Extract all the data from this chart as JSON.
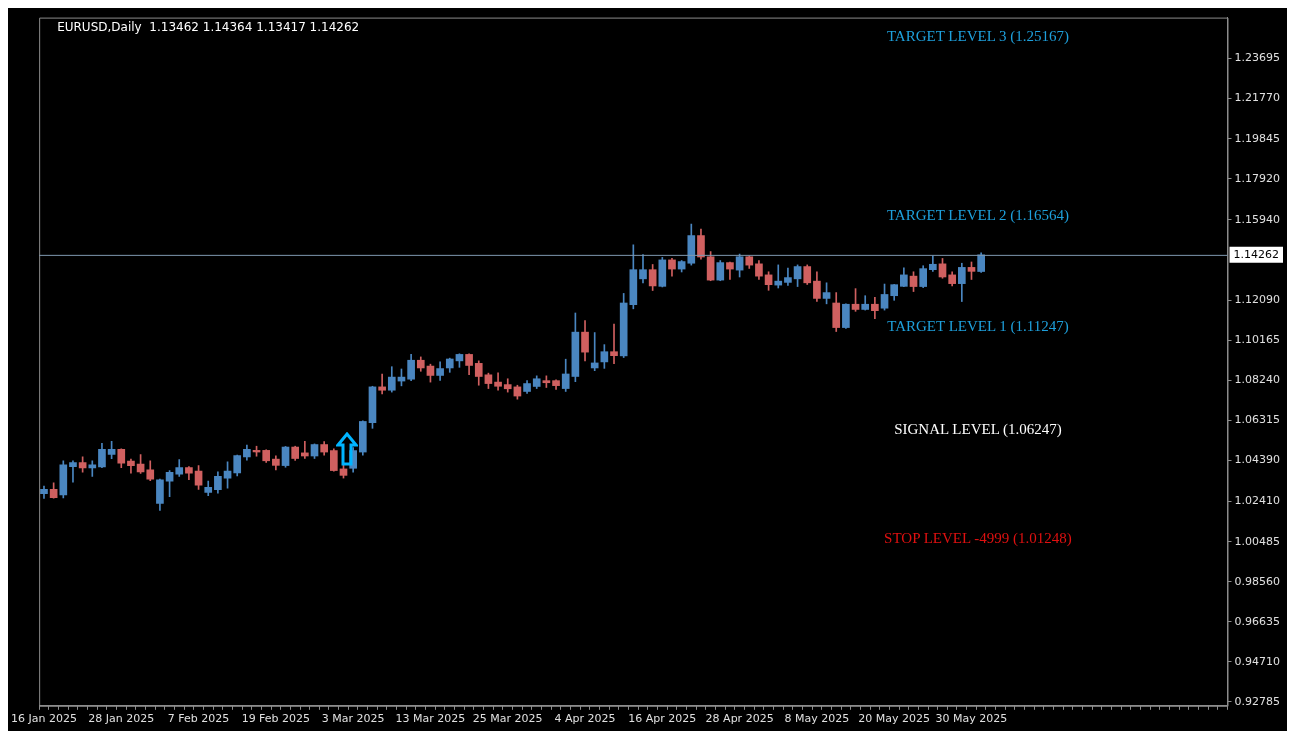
{
  "chart_data": {
    "type": "candlestick",
    "title": "EURUSD,Daily  1.13462 1.14364 1.13417 1.14262",
    "categories": [
      "16 Jan 2025",
      null,
      null,
      null,
      null,
      null,
      null,
      null,
      "28 Jan 2025",
      null,
      null,
      null,
      null,
      null,
      null,
      null,
      "7 Feb 2025",
      null,
      null,
      null,
      null,
      null,
      null,
      null,
      "19 Feb 2025",
      null,
      null,
      null,
      null,
      null,
      null,
      null,
      "3 Mar 2025",
      null,
      null,
      null,
      null,
      null,
      null,
      null,
      "13 Mar 2025",
      null,
      null,
      null,
      null,
      null,
      null,
      null,
      "25 Mar 2025",
      null,
      null,
      null,
      null,
      null,
      null,
      null,
      "4 Apr 2025",
      null,
      null,
      null,
      null,
      null,
      null,
      null,
      "16 Apr 2025",
      null,
      null,
      null,
      null,
      null,
      null,
      null,
      "28 Apr 2025",
      null,
      null,
      null,
      null,
      null,
      null,
      null,
      "8 May 2025",
      null,
      null,
      null,
      null,
      null,
      null,
      null,
      "20 May 2025",
      null,
      null,
      null,
      null,
      null,
      null,
      null,
      "30 May 2025",
      null,
      null,
      null,
      null,
      null,
      null,
      null,
      null,
      null,
      null,
      null,
      null,
      null,
      null,
      null,
      null,
      null,
      null,
      null,
      null,
      null,
      null,
      null,
      null,
      null,
      null
    ],
    "ohlc": [
      [
        1.0279,
        1.0315,
        1.0256,
        1.03
      ],
      [
        1.03,
        1.0331,
        1.0257,
        1.026
      ],
      [
        1.0273,
        1.0437,
        1.0259,
        1.0417
      ],
      [
        1.0409,
        1.0437,
        1.0334,
        1.0428
      ],
      [
        1.0428,
        1.0456,
        1.0382,
        1.0403
      ],
      [
        1.0403,
        1.0437,
        1.0362,
        1.0417
      ],
      [
        1.0407,
        1.0521,
        1.0404,
        1.0492
      ],
      [
        1.0467,
        1.0531,
        1.0447,
        1.0492
      ],
      [
        1.0492,
        1.0495,
        1.0404,
        1.0426
      ],
      [
        1.0436,
        1.0445,
        1.0378,
        1.0414
      ],
      [
        1.0421,
        1.0467,
        1.0376,
        1.0384
      ],
      [
        1.0393,
        1.0437,
        1.0342,
        1.0349
      ],
      [
        1.0232,
        1.0349,
        1.0199,
        1.0346
      ],
      [
        1.0339,
        1.039,
        1.0265,
        1.0381
      ],
      [
        1.0373,
        1.0443,
        1.0362,
        1.0404
      ],
      [
        1.0404,
        1.0409,
        1.0346,
        1.0378
      ],
      [
        1.0387,
        1.0414,
        1.03,
        1.032
      ],
      [
        1.0285,
        1.0339,
        1.027,
        1.031
      ],
      [
        1.0298,
        1.0384,
        1.0282,
        1.0362
      ],
      [
        1.0354,
        1.0432,
        1.0306,
        1.0387
      ],
      [
        1.0379,
        1.0465,
        1.0364,
        1.0462
      ],
      [
        1.0456,
        1.0512,
        1.044,
        1.0492
      ],
      [
        1.0487,
        1.0507,
        1.0459,
        1.0479
      ],
      [
        1.0487,
        1.049,
        1.0429,
        1.0437
      ],
      [
        1.0445,
        1.0461,
        1.0393,
        1.0415
      ],
      [
        1.0414,
        1.0506,
        1.0406,
        1.0503
      ],
      [
        1.0503,
        1.0507,
        1.0439,
        1.0448
      ],
      [
        1.0475,
        1.0531,
        1.0448,
        1.046
      ],
      [
        1.046,
        1.0518,
        1.0448,
        1.0515
      ],
      [
        1.0515,
        1.0529,
        1.0464,
        1.0479
      ],
      [
        1.0486,
        1.0495,
        1.0387,
        1.039
      ],
      [
        1.0398,
        1.042,
        1.0354,
        1.0367
      ],
      [
        1.0401,
        1.0501,
        1.0382,
        1.0486
      ],
      [
        1.0479,
        1.0629,
        1.0464,
        1.0626
      ],
      [
        1.062,
        1.0795,
        1.0593,
        1.0792
      ],
      [
        1.0792,
        1.0854,
        1.0758,
        1.0776
      ],
      [
        1.0776,
        1.0889,
        1.0767,
        1.0839
      ],
      [
        1.082,
        1.0878,
        1.0797,
        1.0839
      ],
      [
        1.0829,
        1.0948,
        1.0822,
        1.092
      ],
      [
        1.092,
        1.0936,
        1.0867,
        1.0883
      ],
      [
        1.0892,
        1.0901,
        1.0815,
        1.0847
      ],
      [
        1.0847,
        1.0912,
        1.0823,
        1.088
      ],
      [
        1.0883,
        1.093,
        1.0862,
        1.0926
      ],
      [
        1.0917,
        1.0951,
        1.0886,
        1.0948
      ],
      [
        1.0948,
        1.0951,
        1.0851,
        1.0895
      ],
      [
        1.0905,
        1.0917,
        1.08,
        1.0842
      ],
      [
        1.085,
        1.0858,
        1.0784,
        1.0808
      ],
      [
        1.0815,
        1.0859,
        1.0776,
        1.0795
      ],
      [
        1.0803,
        1.0831,
        1.0767,
        1.0783
      ],
      [
        1.0792,
        1.08,
        1.0733,
        1.0748
      ],
      [
        1.077,
        1.0822,
        1.0761,
        1.0808
      ],
      [
        1.0794,
        1.0845,
        1.0784,
        1.0831
      ],
      [
        1.0822,
        1.0845,
        1.0789,
        1.0812
      ],
      [
        1.0822,
        1.0826,
        1.078,
        1.0798
      ],
      [
        1.0784,
        1.0925,
        1.077,
        1.0854
      ],
      [
        1.0842,
        1.1147,
        1.0817,
        1.1055
      ],
      [
        1.1055,
        1.1111,
        1.0917,
        1.0959
      ],
      [
        1.0883,
        1.1053,
        1.087,
        1.0907
      ],
      [
        1.0912,
        1.0995,
        1.0881,
        1.0961
      ],
      [
        1.0961,
        1.1094,
        1.0904,
        1.0942
      ],
      [
        1.0941,
        1.1241,
        1.0933,
        1.1195
      ],
      [
        1.1187,
        1.1474,
        1.1167,
        1.1355
      ],
      [
        1.1311,
        1.1428,
        1.1291,
        1.1355
      ],
      [
        1.1355,
        1.138,
        1.1255,
        1.1277
      ],
      [
        1.1275,
        1.1414,
        1.1272,
        1.1402
      ],
      [
        1.1402,
        1.1409,
        1.1324,
        1.1358
      ],
      [
        1.1358,
        1.1399,
        1.1344,
        1.1394
      ],
      [
        1.1386,
        1.1574,
        1.1377,
        1.1519
      ],
      [
        1.1519,
        1.155,
        1.1406,
        1.1416
      ],
      [
        1.1417,
        1.1442,
        1.1302,
        1.1305
      ],
      [
        1.1305,
        1.1399,
        1.1302,
        1.1389
      ],
      [
        1.1389,
        1.1392,
        1.1308,
        1.1358
      ],
      [
        1.1353,
        1.143,
        1.132,
        1.1417
      ],
      [
        1.1417,
        1.1421,
        1.1361,
        1.1377
      ],
      [
        1.1383,
        1.1399,
        1.1308,
        1.1324
      ],
      [
        1.133,
        1.1345,
        1.1256,
        1.1283
      ],
      [
        1.1281,
        1.1378,
        1.1267,
        1.13
      ],
      [
        1.1294,
        1.1363,
        1.128,
        1.1317
      ],
      [
        1.1311,
        1.1378,
        1.1274,
        1.137
      ],
      [
        1.137,
        1.1378,
        1.1284,
        1.1292
      ],
      [
        1.13,
        1.1345,
        1.1203,
        1.1217
      ],
      [
        1.1217,
        1.1292,
        1.1191,
        1.1245
      ],
      [
        1.1195,
        1.1245,
        1.1058,
        1.1077
      ],
      [
        1.1077,
        1.1191,
        1.1073,
        1.1189
      ],
      [
        1.1189,
        1.1264,
        1.1155,
        1.1164
      ],
      [
        1.1164,
        1.123,
        1.1161,
        1.1189
      ],
      [
        1.1189,
        1.1222,
        1.112,
        1.1158
      ],
      [
        1.117,
        1.1286,
        1.1161,
        1.1236
      ],
      [
        1.123,
        1.1284,
        1.1208,
        1.1283
      ],
      [
        1.1275,
        1.1364,
        1.1274,
        1.133
      ],
      [
        1.1324,
        1.1345,
        1.125,
        1.1274
      ],
      [
        1.1274,
        1.1374,
        1.1269,
        1.136
      ],
      [
        1.1355,
        1.1422,
        1.1347,
        1.1381
      ],
      [
        1.1383,
        1.1409,
        1.1314,
        1.132
      ],
      [
        1.133,
        1.1345,
        1.1277,
        1.1288
      ],
      [
        1.1288,
        1.1386,
        1.1202,
        1.1366
      ],
      [
        1.1366,
        1.1392,
        1.1308,
        1.1347
      ],
      [
        1.13462,
        1.14364,
        1.13417,
        1.14262
      ],
      null,
      null,
      null,
      null,
      null,
      null,
      null,
      null,
      null,
      null,
      null,
      null,
      null,
      null,
      null,
      null,
      null,
      null,
      null,
      null,
      null,
      null,
      null,
      null,
      null
    ],
    "colors": [
      "#4a86c0",
      "#d06060",
      "#4a86c0",
      "#4a86c0",
      "#d06060",
      "#4a86c0",
      "#4a86c0",
      "#4a86c0",
      "#d06060",
      "#d06060",
      "#d06060",
      "#d06060",
      "#4a86c0",
      "#4a86c0",
      "#4a86c0",
      "#d06060",
      "#d06060",
      "#4a86c0",
      "#4a86c0",
      "#4a86c0",
      "#4a86c0",
      "#4a86c0",
      "#d06060",
      "#d06060",
      "#d06060",
      "#4a86c0",
      "#d06060",
      "#d06060",
      "#4a86c0",
      "#d06060",
      "#d06060",
      "#d06060",
      "#4a86c0",
      "#4a86c0",
      "#4a86c0",
      "#d06060",
      "#4a86c0",
      "#4a86c0",
      "#4a86c0",
      "#d06060",
      "#d06060",
      "#4a86c0",
      "#4a86c0",
      "#4a86c0",
      "#d06060",
      "#d06060",
      "#d06060",
      "#d06060",
      "#d06060",
      "#d06060",
      "#4a86c0",
      "#4a86c0",
      "#d06060",
      "#d06060",
      "#4a86c0",
      "#4a86c0",
      "#d06060",
      "#4a86c0",
      "#4a86c0",
      "#d06060",
      "#4a86c0",
      "#4a86c0",
      "#4a86c0",
      "#d06060",
      "#4a86c0",
      "#d06060",
      "#4a86c0",
      "#4a86c0",
      "#d06060",
      "#d06060",
      "#4a86c0",
      "#d06060",
      "#4a86c0",
      "#d06060",
      "#d06060",
      "#d06060",
      "#4a86c0",
      "#4a86c0",
      "#4a86c0",
      "#d06060",
      "#d06060",
      "#4a86c0",
      "#d06060",
      "#4a86c0",
      "#d06060",
      "#4a86c0",
      "#d06060",
      "#4a86c0",
      "#4a86c0",
      "#4a86c0",
      "#d06060",
      "#4a86c0",
      "#4a86c0",
      "#d06060",
      "#d06060",
      "#4a86c0",
      "#d06060",
      "#4a86c0",
      null,
      null,
      null,
      null,
      null,
      null,
      null,
      null,
      null,
      null,
      null,
      null,
      null,
      null,
      null,
      null,
      null,
      null,
      null,
      null,
      null,
      null,
      null,
      null,
      null
    ],
    "ylim": [
      0.926,
      1.2566
    ],
    "yticks": [
      0.92785,
      {
        "value": 0.9471,
        "label": "0.94710"
      },
      0.96635,
      {
        "value": 0.9856,
        "label": "0.98560"
      },
      1.00485,
      {
        "value": 1.0241,
        "label": "1.02410"
      },
      {
        "value": 1.0439,
        "label": "1.04390"
      },
      1.06315,
      {
        "value": 1.0824,
        "label": "1.08240"
      },
      1.10165,
      {
        "value": 1.1209,
        "label": "1.12090"
      },
      {
        "value": 1.1594,
        "label": "1.15940"
      },
      {
        "value": 1.1792,
        "label": "1.17920"
      },
      1.19845,
      {
        "value": 1.2177,
        "label": "1.21770"
      },
      1.23695
    ],
    "ref_lines": [
      {
        "axis": "y",
        "value": 1.14262,
        "label": "1.14262",
        "color": "#7f98b0"
      }
    ],
    "annotations": [
      "TARGET LEVEL 3 (1.25167)",
      "TARGET LEVEL 2 (1.16564)",
      "TARGET LEVEL 1 (1.11247)",
      "SIGNAL LEVEL (1.06247)",
      "STOP LEVEL -4999 (1.01248)"
    ]
  }
}
